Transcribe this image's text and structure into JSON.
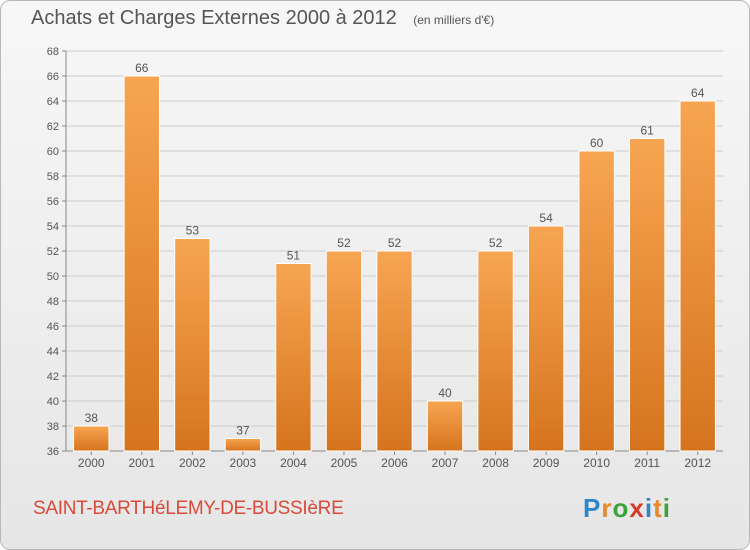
{
  "title": {
    "main": "Achats et Charges Externes 2000 à 2012",
    "unit": "(en milliers d'€)"
  },
  "commune": "SAINT-BARTHéLEMY-DE-BUSSIèRE",
  "logo": {
    "text": "Proxiti",
    "letters": [
      "P",
      "r",
      "o",
      "x",
      "i",
      "t",
      "i"
    ],
    "colors": [
      "#2f86c8",
      "#e6892a",
      "#3ca23c",
      "#d83a2a",
      "#2f86c8",
      "#e6892a",
      "#3ca23c"
    ]
  },
  "colors": {
    "bar_light": "#f7a552",
    "bar_dark": "#d6741e",
    "grid": "#cccccc",
    "text": "#555555"
  },
  "chart_data": {
    "type": "bar",
    "categories": [
      "2000",
      "2001",
      "2002",
      "2003",
      "2004",
      "2005",
      "2006",
      "2007",
      "2008",
      "2009",
      "2010",
      "2011",
      "2012"
    ],
    "values": [
      38,
      66,
      53,
      37,
      51,
      52,
      52,
      40,
      52,
      54,
      60,
      61,
      64
    ],
    "ylim": [
      36,
      68
    ],
    "yticks": [
      36,
      38,
      40,
      42,
      44,
      46,
      48,
      50,
      52,
      54,
      56,
      58,
      60,
      62,
      64,
      66,
      68
    ],
    "grid": true,
    "data_labels": true
  }
}
